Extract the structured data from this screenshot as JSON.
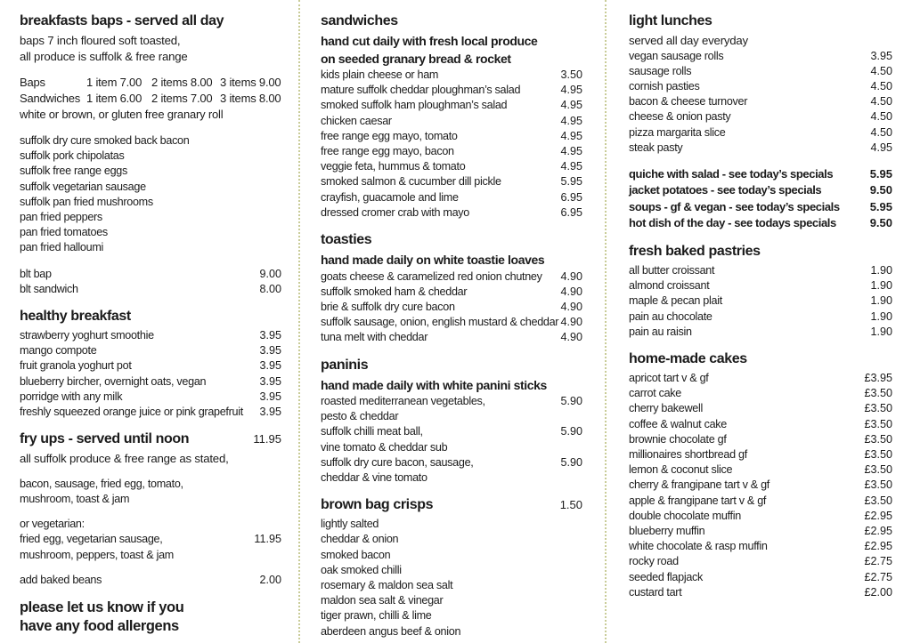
{
  "page": {
    "background": "#ffffff",
    "text_color": "#1b1b1b",
    "divider_color": "#c9cc98",
    "divider_style": "dotted-vertical"
  },
  "columns": [
    {
      "name": "left",
      "sections": [
        {
          "title": "breakfasts baps - served all day",
          "subtitles": [
            "baps 7 inch floured soft toasted,",
            "all produce is suffolk & free range"
          ]
        },
        {
          "table": {
            "rows": [
              [
                "Baps",
                "1 item 7.00",
                "2 items 8.00",
                "3 items 9.00"
              ],
              [
                "Sandwiches",
                "1 item 6.00",
                "2 items 7.00",
                "3 items 8.00"
              ]
            ],
            "note": "white or brown, or gluten free granary roll"
          }
        },
        {
          "items": [
            {
              "text": "suffolk dry cure smoked back bacon"
            },
            {
              "text": "suffolk pork chipolatas"
            },
            {
              "text": "suffolk free range eggs"
            },
            {
              "text": "suffolk vegetarian sausage"
            },
            {
              "text": "suffolk pan fried mushrooms"
            },
            {
              "text": "pan fried peppers"
            },
            {
              "text": "pan fried tomatoes"
            },
            {
              "text": "pan fried halloumi"
            }
          ]
        },
        {
          "items": [
            {
              "text": "blt bap",
              "price": "9.00"
            },
            {
              "text": "blt sandwich",
              "price": "8.00"
            }
          ]
        },
        {
          "title": "healthy breakfast",
          "items": [
            {
              "text": "strawberry yoghurt smoothie",
              "price": "3.95"
            },
            {
              "text": "mango compote",
              "price": "3.95"
            },
            {
              "text": "fruit granola yoghurt pot",
              "price": "3.95"
            },
            {
              "text": "blueberry bircher, overnight oats, vegan",
              "price": "3.95"
            },
            {
              "text": "porridge with any milk",
              "price": "3.95"
            },
            {
              "text": "freshly squeezed orange juice or pink grapefruit",
              "price": "3.95"
            }
          ]
        },
        {
          "title": "fry ups - served until noon",
          "title_price": "11.95",
          "subtitles": [
            "all suffolk produce & free range as stated,"
          ],
          "items": [
            {
              "text": "bacon, sausage, fried egg, tomato,",
              "gap": true
            },
            {
              "text": "mushroom, toast & jam"
            },
            {
              "text": "or vegetarian:",
              "gap": true
            },
            {
              "text": "fried egg, vegetarian sausage,",
              "price": "11.95"
            },
            {
              "text": "mushroom, peppers, toast & jam"
            },
            {
              "text": "add baked beans",
              "price": "2.00",
              "gap": true
            }
          ]
        },
        {
          "note_lines": [
            "please let us know if you",
            "have any food allergens"
          ]
        }
      ]
    },
    {
      "name": "middle",
      "sections": [
        {
          "title": "sandwiches",
          "subtitles_bold": true,
          "subtitles": [
            "hand cut daily with fresh local produce",
            "on seeded granary bread & rocket"
          ],
          "items": [
            {
              "text": "kids plain cheese or ham",
              "price": "3.50"
            },
            {
              "text": "mature suffolk cheddar ploughman’s salad",
              "price": "4.95"
            },
            {
              "text": "smoked suffolk ham ploughman’s salad",
              "price": "4.95"
            },
            {
              "text": "chicken caesar",
              "price": "4.95"
            },
            {
              "text": "free range egg mayo, tomato",
              "price": "4.95"
            },
            {
              "text": "free range egg mayo, bacon",
              "price": "4.95"
            },
            {
              "text": "veggie feta, hummus & tomato",
              "price": "4.95"
            },
            {
              "text": "smoked salmon & cucumber dill pickle",
              "price": "5.95"
            },
            {
              "text": "crayfish, guacamole and lime",
              "price": "6.95"
            },
            {
              "text": "dressed cromer crab with mayo",
              "price": "6.95"
            }
          ]
        },
        {
          "title": "toasties",
          "subtitles_bold": true,
          "subtitles": [
            "hand made daily on white toastie loaves"
          ],
          "items": [
            {
              "text": "goats cheese & caramelized red onion chutney",
              "price": "4.90"
            },
            {
              "text": "suffolk smoked ham & cheddar",
              "price": "4.90"
            },
            {
              "text": "brie & suffolk dry cure bacon",
              "price": "4.90"
            },
            {
              "text": "suffolk sausage, onion, english mustard & cheddar",
              "price": "4.90"
            },
            {
              "text": "tuna melt with cheddar",
              "price": "4.90"
            }
          ]
        },
        {
          "title": "paninis",
          "subtitles_bold": true,
          "subtitles": [
            "hand made daily with white panini sticks"
          ],
          "items": [
            {
              "text": "roasted mediterranean vegetables,",
              "price": "5.90"
            },
            {
              "text": "pesto & cheddar"
            },
            {
              "text": "suffolk chilli meat ball,",
              "price": "5.90"
            },
            {
              "text": "vine tomato & cheddar sub"
            },
            {
              "text": "suffolk dry cure bacon, sausage,",
              "price": "5.90"
            },
            {
              "text": "cheddar & vine tomato"
            }
          ]
        },
        {
          "title": "brown bag crisps",
          "title_price": "1.50",
          "items": [
            {
              "text": "lightly salted"
            },
            {
              "text": "cheddar & onion"
            },
            {
              "text": "smoked bacon"
            },
            {
              "text": "oak smoked chilli"
            },
            {
              "text": "rosemary & maldon sea salt"
            },
            {
              "text": "maldon sea salt & vinegar"
            },
            {
              "text": "tiger prawn, chilli & lime"
            },
            {
              "text": "aberdeen angus beef & onion"
            }
          ]
        }
      ]
    },
    {
      "name": "right",
      "sections": [
        {
          "title": "light lunches",
          "subtitles": [
            "served all day everyday"
          ],
          "items": [
            {
              "text": "vegan sausage rolls",
              "price": "3.95"
            },
            {
              "text": "sausage rolls",
              "price": "4.50"
            },
            {
              "text": "cornish pasties",
              "price": "4.50"
            },
            {
              "text": "bacon & cheese turnover",
              "price": "4.50"
            },
            {
              "text": "cheese & onion pasty",
              "price": "4.50"
            },
            {
              "text": "pizza margarita slice",
              "price": "4.50"
            },
            {
              "text": "steak pasty",
              "price": "4.95"
            }
          ]
        },
        {
          "items_bold": true,
          "items": [
            {
              "text": "quiche with salad - see today’s specials",
              "price": "5.95"
            },
            {
              "text": "jacket potatoes - see today’s specials",
              "price": "9.50"
            },
            {
              "text": "soups - gf & vegan - see today’s specials",
              "price": "5.95"
            },
            {
              "text": "hot dish of the day - see todays specials",
              "price": "9.50"
            }
          ]
        },
        {
          "title": "fresh baked pastries",
          "items": [
            {
              "text": "all butter croissant",
              "price": "1.90"
            },
            {
              "text": "almond croissant",
              "price": "1.90"
            },
            {
              "text": "maple & pecan plait",
              "price": "1.90"
            },
            {
              "text": "pain au chocolate",
              "price": "1.90"
            },
            {
              "text": "pain au raisin",
              "price": "1.90"
            }
          ]
        },
        {
          "title": "home-made cakes",
          "items": [
            {
              "text": "apricot tart v & gf",
              "price": "£3.95"
            },
            {
              "text": "carrot cake",
              "price": "£3.50"
            },
            {
              "text": "cherry bakewell",
              "price": "£3.50"
            },
            {
              "text": "coffee & walnut cake",
              "price": "£3.50"
            },
            {
              "text": "brownie chocolate gf",
              "price": "£3.50"
            },
            {
              "text": "millionaires shortbread gf",
              "price": "£3.50"
            },
            {
              "text": "lemon & coconut slice",
              "price": "£3.50"
            },
            {
              "text": "cherry & frangipane tart v & gf",
              "price": "£3.50"
            },
            {
              "text": "apple & frangipane tart v & gf",
              "price": "£3.50"
            },
            {
              "text": "double chocolate muffin",
              "price": "£2.95"
            },
            {
              "text": "blueberry muffin",
              "price": "£2.95"
            },
            {
              "text": "white chocolate & rasp muffin",
              "price": "£2.95"
            },
            {
              "text": "rocky road",
              "price": "£2.75"
            },
            {
              "text": "seeded flapjack",
              "price": "£2.75"
            },
            {
              "text": "custard tart",
              "price": "£2.00"
            }
          ]
        }
      ]
    }
  ]
}
